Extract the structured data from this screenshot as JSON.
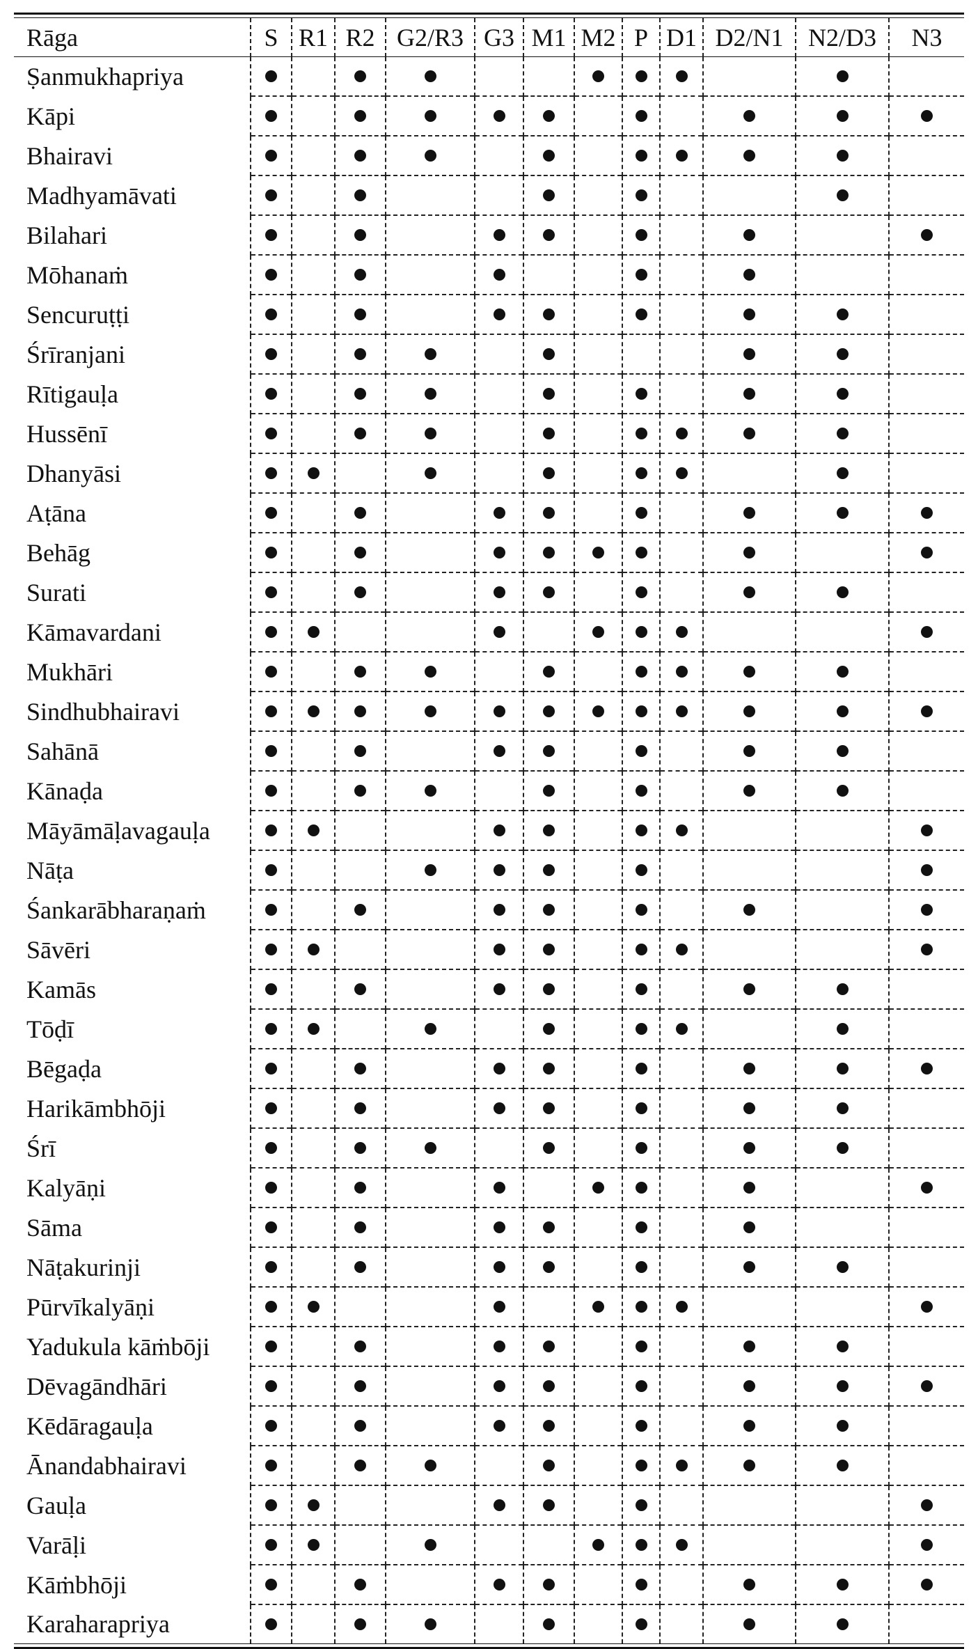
{
  "table": {
    "headers": [
      "Rāga",
      "S",
      "R1",
      "R2",
      "G2/R3",
      "G3",
      "M1",
      "M2",
      "P",
      "D1",
      "D2/N1",
      "N2/D3",
      "N3"
    ],
    "rows": [
      {
        "raga": "Ṣanmukhapriya",
        "notes": [
          1,
          0,
          1,
          1,
          0,
          0,
          1,
          1,
          1,
          0,
          1,
          0
        ]
      },
      {
        "raga": "Kāpi",
        "notes": [
          1,
          0,
          1,
          1,
          1,
          1,
          0,
          1,
          0,
          1,
          1,
          1
        ]
      },
      {
        "raga": "Bhairavi",
        "notes": [
          1,
          0,
          1,
          1,
          0,
          1,
          0,
          1,
          1,
          1,
          1,
          0
        ]
      },
      {
        "raga": "Madhyamāvati",
        "notes": [
          1,
          0,
          1,
          0,
          0,
          1,
          0,
          1,
          0,
          0,
          1,
          0
        ]
      },
      {
        "raga": "Bilahari",
        "notes": [
          1,
          0,
          1,
          0,
          1,
          1,
          0,
          1,
          0,
          1,
          0,
          1
        ]
      },
      {
        "raga": "Mōhanaṁ",
        "notes": [
          1,
          0,
          1,
          0,
          1,
          0,
          0,
          1,
          0,
          1,
          0,
          0
        ]
      },
      {
        "raga": "Sencuruṭṭi",
        "notes": [
          1,
          0,
          1,
          0,
          1,
          1,
          0,
          1,
          0,
          1,
          1,
          0
        ]
      },
      {
        "raga": "Śrīranjani",
        "notes": [
          1,
          0,
          1,
          1,
          0,
          1,
          0,
          0,
          0,
          1,
          1,
          0
        ]
      },
      {
        "raga": "Rītigauḷa",
        "notes": [
          1,
          0,
          1,
          1,
          0,
          1,
          0,
          1,
          0,
          1,
          1,
          0
        ]
      },
      {
        "raga": "Hussēnī",
        "notes": [
          1,
          0,
          1,
          1,
          0,
          1,
          0,
          1,
          1,
          1,
          1,
          0
        ]
      },
      {
        "raga": "Dhanyāsi",
        "notes": [
          1,
          1,
          0,
          1,
          0,
          1,
          0,
          1,
          1,
          0,
          1,
          0
        ]
      },
      {
        "raga": "Aṭāna",
        "notes": [
          1,
          0,
          1,
          0,
          1,
          1,
          0,
          1,
          0,
          1,
          1,
          1
        ]
      },
      {
        "raga": "Behāg",
        "notes": [
          1,
          0,
          1,
          0,
          1,
          1,
          1,
          1,
          0,
          1,
          0,
          1
        ]
      },
      {
        "raga": "Surati",
        "notes": [
          1,
          0,
          1,
          0,
          1,
          1,
          0,
          1,
          0,
          1,
          1,
          0
        ]
      },
      {
        "raga": "Kāmavardani",
        "notes": [
          1,
          1,
          0,
          0,
          1,
          0,
          1,
          1,
          1,
          0,
          0,
          1
        ]
      },
      {
        "raga": "Mukhāri",
        "notes": [
          1,
          0,
          1,
          1,
          0,
          1,
          0,
          1,
          1,
          1,
          1,
          0
        ]
      },
      {
        "raga": "Sindhubhairavi",
        "notes": [
          1,
          1,
          1,
          1,
          1,
          1,
          1,
          1,
          1,
          1,
          1,
          1
        ]
      },
      {
        "raga": "Sahānā",
        "notes": [
          1,
          0,
          1,
          0,
          1,
          1,
          0,
          1,
          0,
          1,
          1,
          0
        ]
      },
      {
        "raga": "Kānaḍa",
        "notes": [
          1,
          0,
          1,
          1,
          0,
          1,
          0,
          1,
          0,
          1,
          1,
          0
        ]
      },
      {
        "raga": "Māyāmāḷavagauḷa",
        "notes": [
          1,
          1,
          0,
          0,
          1,
          1,
          0,
          1,
          1,
          0,
          0,
          1
        ]
      },
      {
        "raga": "Nāṭa",
        "notes": [
          1,
          0,
          0,
          1,
          1,
          1,
          0,
          1,
          0,
          0,
          0,
          1
        ]
      },
      {
        "raga": "Śankarābharaṇaṁ",
        "notes": [
          1,
          0,
          1,
          0,
          1,
          1,
          0,
          1,
          0,
          1,
          0,
          1
        ]
      },
      {
        "raga": "Sāvēri",
        "notes": [
          1,
          1,
          0,
          0,
          1,
          1,
          0,
          1,
          1,
          0,
          0,
          1
        ]
      },
      {
        "raga": "Kamās",
        "notes": [
          1,
          0,
          1,
          0,
          1,
          1,
          0,
          1,
          0,
          1,
          1,
          0
        ]
      },
      {
        "raga": "Tōḍī",
        "notes": [
          1,
          1,
          0,
          1,
          0,
          1,
          0,
          1,
          1,
          0,
          1,
          0
        ]
      },
      {
        "raga": "Bēgaḍa",
        "notes": [
          1,
          0,
          1,
          0,
          1,
          1,
          0,
          1,
          0,
          1,
          1,
          1
        ]
      },
      {
        "raga": "Harikāmbhōji",
        "notes": [
          1,
          0,
          1,
          0,
          1,
          1,
          0,
          1,
          0,
          1,
          1,
          0
        ]
      },
      {
        "raga": "Śrī",
        "notes": [
          1,
          0,
          1,
          1,
          0,
          1,
          0,
          1,
          0,
          1,
          1,
          0
        ]
      },
      {
        "raga": "Kalyāṇi",
        "notes": [
          1,
          0,
          1,
          0,
          1,
          0,
          1,
          1,
          0,
          1,
          0,
          1
        ]
      },
      {
        "raga": "Sāma",
        "notes": [
          1,
          0,
          1,
          0,
          1,
          1,
          0,
          1,
          0,
          1,
          0,
          0
        ]
      },
      {
        "raga": "Nāṭakurinji",
        "notes": [
          1,
          0,
          1,
          0,
          1,
          1,
          0,
          1,
          0,
          1,
          1,
          0
        ]
      },
      {
        "raga": "Pūrvīkalyāṇi",
        "notes": [
          1,
          1,
          0,
          0,
          1,
          0,
          1,
          1,
          1,
          0,
          0,
          1
        ]
      },
      {
        "raga": "Yadukula kāṁbōji",
        "notes": [
          1,
          0,
          1,
          0,
          1,
          1,
          0,
          1,
          0,
          1,
          1,
          0
        ]
      },
      {
        "raga": "Dēvagāndhāri",
        "notes": [
          1,
          0,
          1,
          0,
          1,
          1,
          0,
          1,
          0,
          1,
          1,
          1
        ]
      },
      {
        "raga": "Kēdāragauḷa",
        "notes": [
          1,
          0,
          1,
          0,
          1,
          1,
          0,
          1,
          0,
          1,
          1,
          0
        ]
      },
      {
        "raga": "Ānandabhairavi",
        "notes": [
          1,
          0,
          1,
          1,
          0,
          1,
          0,
          1,
          1,
          1,
          1,
          0
        ]
      },
      {
        "raga": "Gauḷa",
        "notes": [
          1,
          1,
          0,
          0,
          1,
          1,
          0,
          1,
          0,
          0,
          0,
          1
        ]
      },
      {
        "raga": "Varāḷi",
        "notes": [
          1,
          1,
          0,
          1,
          0,
          0,
          1,
          1,
          1,
          0,
          0,
          1
        ]
      },
      {
        "raga": "Kāṁbhōji",
        "notes": [
          1,
          0,
          1,
          0,
          1,
          1,
          0,
          1,
          0,
          1,
          1,
          1
        ]
      },
      {
        "raga": "Karaharapriya",
        "notes": [
          1,
          0,
          1,
          1,
          0,
          1,
          0,
          1,
          0,
          1,
          1,
          0
        ]
      }
    ]
  }
}
